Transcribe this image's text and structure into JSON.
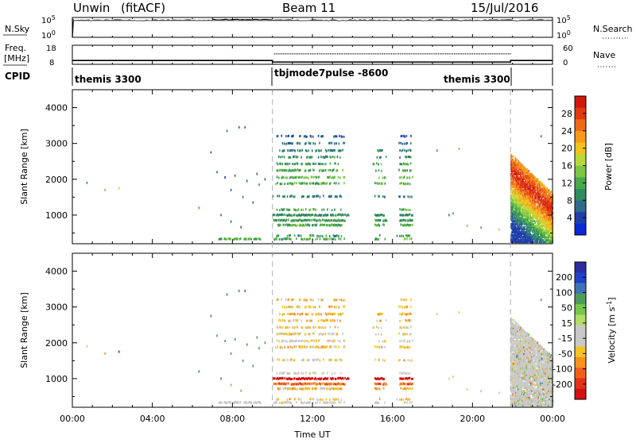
{
  "header": {
    "radar": "Unwin",
    "mode": "(fitACF)",
    "beam": "Beam 11",
    "date": "15/Jul/2016"
  },
  "panels": {
    "nsky": {
      "label": "N.Sky",
      "ticks": [
        "10^5",
        "10^0"
      ],
      "right_ticks": [
        "10^5",
        "10^0"
      ],
      "right_label": "N.Search"
    },
    "freq": {
      "label": "Freq.",
      "unit": "[MHz]",
      "ticks": [
        "18",
        "8"
      ],
      "right_ticks": [
        "60",
        "0"
      ],
      "right_label": "Nave"
    },
    "cpid": {
      "label": "CPID",
      "segments": [
        "themis 3300",
        "tbjmode7pulse -8600",
        "themis 3300"
      ]
    }
  },
  "chart_data": [
    {
      "type": "heatmap",
      "name": "power",
      "ylabel": "Slant Range [km]",
      "yticks": [
        1000,
        2000,
        3000,
        4000
      ],
      "ylim": [
        200,
        4500
      ],
      "xlim_hours": [
        0,
        24
      ],
      "colorbar": {
        "label": "Power [dB]",
        "ticks": [
          4,
          8,
          12,
          16,
          20,
          24,
          28
        ],
        "range": [
          0,
          32
        ],
        "colors": [
          "#0a28d8",
          "#1f3faa",
          "#2e6a8a",
          "#2e8c60",
          "#49a84a",
          "#7cc641",
          "#b9d93a",
          "#f2c21d",
          "#f79a1a",
          "#ef6a12",
          "#e03a10",
          "#d4170e"
        ]
      },
      "gates": [
        {
          "r": 330,
          "s": [
            [
              7.3,
              9.4
            ],
            [
              10,
              11.2
            ],
            [
              11.4,
              13.6
            ],
            [
              15.1,
              15.6
            ],
            [
              16.2,
              17
            ]
          ],
          "v": 12,
          "vv": -20,
          "d": 0.55
        },
        {
          "r": 420,
          "s": [
            [
              10,
              13.6
            ],
            [
              15.2,
              15.6
            ],
            [
              16.2,
              16.9
            ]
          ],
          "v": 10,
          "vv": -70,
          "d": 0.4
        },
        {
          "r": 720,
          "s": [
            [
              10.2,
              13.6
            ],
            [
              15.1,
              15.6
            ],
            [
              16.3,
              17
            ]
          ],
          "v": 12,
          "vv": -80,
          "d": 0.8
        },
        {
          "r": 850,
          "s": [
            [
              10,
              13.6
            ],
            [
              15.1,
              15.7
            ],
            [
              16.3,
              17
            ]
          ],
          "v": 11,
          "vv": -150,
          "d": 0.8
        },
        {
          "r": 1000,
          "s": [
            [
              10,
              13.8
            ],
            [
              15.1,
              15.6
            ],
            [
              16.3,
              17
            ]
          ],
          "v": 9,
          "vv": -300,
          "d": 0.85
        },
        {
          "r": 1150,
          "s": [
            [
              10.2,
              13.4
            ],
            [
              16.3,
              16.9
            ]
          ],
          "v": 12,
          "vv": -10,
          "d": 0.4
        },
        {
          "r": 1520,
          "s": [
            [
              10,
              13.5
            ],
            [
              15,
              15.6
            ],
            [
              16.3,
              17
            ]
          ],
          "v": 8,
          "vv": -60,
          "d": 0.5
        },
        {
          "r": 1880,
          "s": [
            [
              10,
              13.6
            ],
            [
              15.1,
              15.6
            ],
            [
              16.3,
              16.9
            ]
          ],
          "v": 12,
          "vv": -70,
          "d": 0.6
        },
        {
          "r": 2050,
          "s": [
            [
              10.2,
              13.6
            ],
            [
              15.3,
              15.7
            ],
            [
              16.3,
              17
            ]
          ],
          "v": 13,
          "vv": -40,
          "d": 0.5
        },
        {
          "r": 2250,
          "s": [
            [
              10.2,
              13.5
            ],
            [
              15.1,
              15.5
            ],
            [
              16.3,
              16.9
            ]
          ],
          "v": 12,
          "vv": -60,
          "d": 0.5
        },
        {
          "r": 2430,
          "s": [
            [
              10.2,
              13.3
            ],
            [
              15,
              15.6
            ],
            [
              16.3,
              16.9
            ]
          ],
          "v": 11,
          "vv": -50,
          "d": 0.45
        },
        {
          "r": 2620,
          "s": [
            [
              10.2,
              13.4
            ],
            [
              15.2,
              15.7
            ],
            [
              16.3,
              16.9
            ]
          ],
          "v": 10,
          "vv": -80,
          "d": 0.45
        },
        {
          "r": 2800,
          "s": [
            [
              10.2,
              13.5
            ],
            [
              15.1,
              15.7
            ],
            [
              16.3,
              16.9
            ]
          ],
          "v": 8,
          "vv": -100,
          "d": 0.5
        },
        {
          "r": 3000,
          "s": [
            [
              10.3,
              12.4
            ],
            [
              12.8,
              13.6
            ],
            [
              16.3,
              16.9
            ]
          ],
          "v": 7,
          "vv": -90,
          "d": 0.45
        },
        {
          "r": 3200,
          "s": [
            [
              10.2,
              12.5
            ],
            [
              13,
              13.6
            ],
            [
              16.4,
              16.9
            ]
          ],
          "v": 6,
          "vv": -80,
          "d": 0.45
        }
      ],
      "storm": {
        "hours": [
          21.9,
          24
        ],
        "r_top_start": 2700,
        "r_top_end": 1600,
        "v_peak": 18,
        "vv": -10
      },
      "isolated": [
        [
          0.7,
          1900,
          10,
          20
        ],
        [
          1.6,
          1700,
          14,
          -100
        ],
        [
          2.3,
          1750,
          18,
          -250
        ],
        [
          6.3,
          1200,
          12,
          150
        ],
        [
          6.9,
          2750,
          6,
          160
        ],
        [
          7.7,
          3350,
          8,
          150
        ],
        [
          8.3,
          3450,
          7,
          140
        ],
        [
          8.6,
          3450,
          7,
          150
        ],
        [
          7.2,
          2200,
          6,
          120
        ],
        [
          7.6,
          2050,
          5,
          120
        ],
        [
          8.1,
          2100,
          7,
          120
        ],
        [
          8.7,
          1950,
          6,
          120
        ],
        [
          9.2,
          2150,
          7,
          110
        ],
        [
          7.9,
          1700,
          6,
          110
        ],
        [
          8.5,
          1500,
          8,
          100
        ],
        [
          9.0,
          1350,
          6,
          100
        ],
        [
          7.4,
          1000,
          6,
          100
        ],
        [
          7.9,
          820,
          7,
          90
        ],
        [
          8.4,
          660,
          6,
          90
        ],
        [
          9.6,
          2000,
          6,
          110
        ],
        [
          9.3,
          1850,
          8,
          130
        ],
        [
          18.2,
          2800,
          12,
          20
        ],
        [
          19.3,
          2850,
          14,
          -80
        ],
        [
          18.8,
          1000,
          10,
          10
        ],
        [
          19.7,
          700,
          14,
          30
        ],
        [
          20.4,
          650,
          11,
          20
        ],
        [
          21.3,
          600,
          16,
          -50
        ],
        [
          19.0,
          1050,
          12,
          -60
        ],
        [
          23.4,
          3200,
          8,
          120
        ]
      ]
    },
    {
      "type": "heatmap",
      "name": "velocity",
      "xlabel": "Time UT",
      "ylabel": "Slant Range [km]",
      "yticks": [
        1000,
        2000,
        3000,
        4000
      ],
      "ylim": [
        200,
        4500
      ],
      "xticks": [
        "00:00",
        "04:00",
        "08:00",
        "12:00",
        "16:00",
        "20:00",
        "00:00"
      ],
      "colorbar": {
        "label": "Velocity [m s^-1]",
        "ticks": [
          200,
          100,
          50,
          15,
          -15,
          -50,
          -100,
          -200
        ],
        "range": [
          -250,
          250
        ],
        "colors": [
          "#2a2ea0",
          "#2042c8",
          "#3d74b8",
          "#4f9c59",
          "#76c84a",
          "#b0dd66",
          "#c8c8c8",
          "#c8c8c8",
          "#f3c424",
          "#f7921d",
          "#f0601a",
          "#e4311a",
          "#d21110"
        ]
      }
    }
  ]
}
